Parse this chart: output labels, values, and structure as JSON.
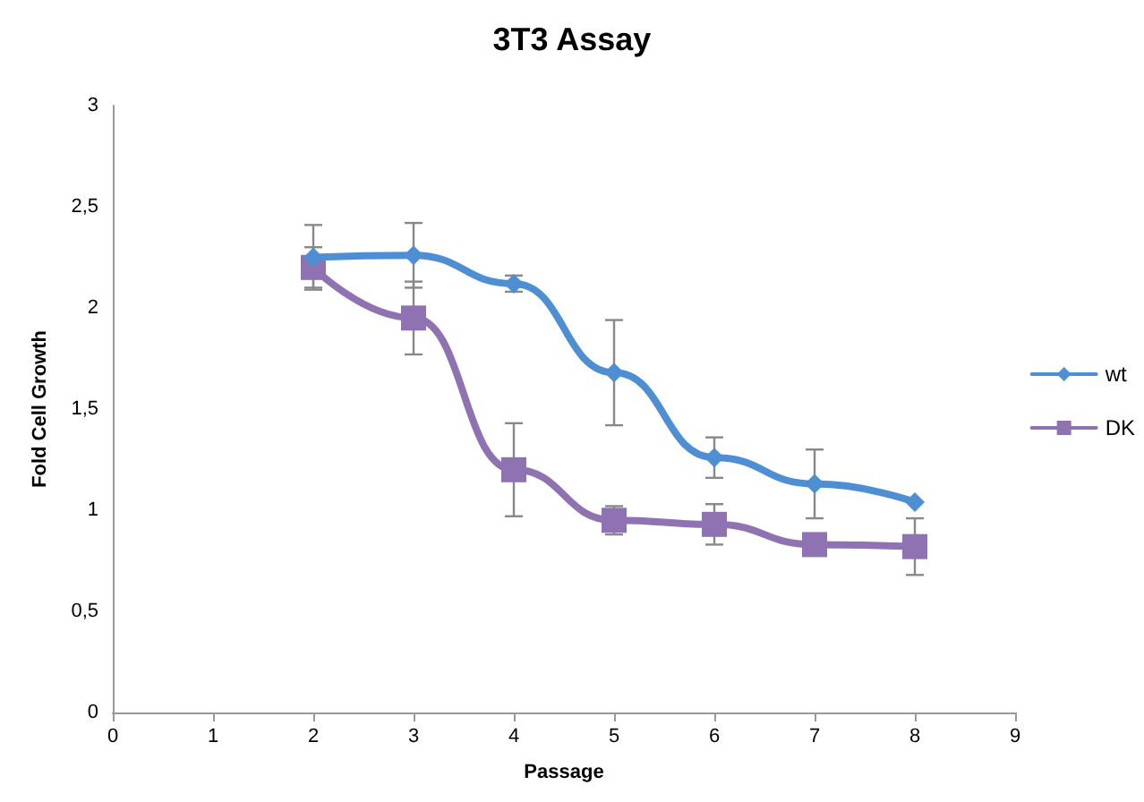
{
  "chart_data": {
    "type": "line",
    "title": "3T3 Assay",
    "xlabel": "Passage",
    "ylabel": "Fold Cell Growth",
    "x": [
      2,
      3,
      4,
      5,
      6,
      7,
      8
    ],
    "series": [
      {
        "name": "wt",
        "color": "#4e8fd3",
        "marker": "diamond",
        "values": [
          2.25,
          2.26,
          2.12,
          1.68,
          1.26,
          1.13,
          1.04
        ],
        "errors": [
          0.16,
          0.16,
          0.04,
          0.26,
          0.1,
          0.17,
          null
        ]
      },
      {
        "name": "DK",
        "color": "#8e72b2",
        "marker": "square",
        "values": [
          2.2,
          1.95,
          1.2,
          0.95,
          0.93,
          0.83,
          0.82
        ],
        "errors": [
          0.1,
          0.18,
          0.23,
          0.07,
          0.1,
          null,
          0.14
        ]
      }
    ],
    "xlim": [
      0,
      9
    ],
    "xticks": [
      0,
      1,
      2,
      3,
      4,
      5,
      6,
      7,
      8,
      9
    ],
    "ylim": [
      0,
      3
    ],
    "yticks": [
      {
        "value": 0,
        "label": "0"
      },
      {
        "value": 0.5,
        "label": "0,5"
      },
      {
        "value": 1,
        "label": "1"
      },
      {
        "value": 1.5,
        "label": "1,5"
      },
      {
        "value": 2,
        "label": "2"
      },
      {
        "value": 2.5,
        "label": "2,5"
      },
      {
        "value": 3,
        "label": "3"
      }
    ],
    "grid": false,
    "legend": "right"
  }
}
